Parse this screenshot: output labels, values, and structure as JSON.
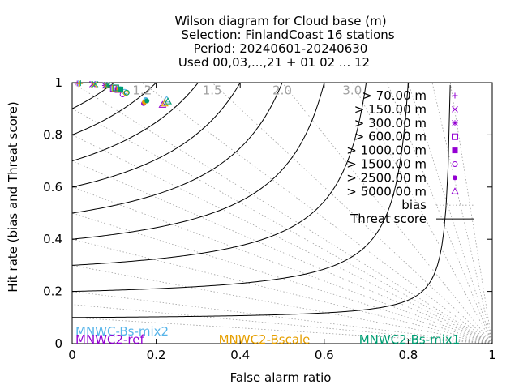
{
  "colors": {
    "threat_line": "#000000",
    "bias_line": "#a0a0a0",
    "mnwc_bs_mix2": "#56b4e9",
    "mnwc2_ref": "#9400d3",
    "mnwc2_bscale": "#e69f00",
    "mnwc2_bs_mix1": "#009e73",
    "legend_marker": "#9400d3"
  },
  "chart_data": {
    "type": "scatter",
    "title_lines": [
      "Wilson diagram  for Cloud base (m)",
      "Selection: FinlandCoast      16 stations",
      "Period: 20240601-20240630",
      "Used 00,03,...,21 + 01 02 ... 12"
    ],
    "xlabel": "False alarm ratio",
    "ylabel": "Hit rate (bias and Threat score)",
    "xlim": [
      0,
      1
    ],
    "ylim": [
      0,
      1
    ],
    "x_ticks": [
      "0",
      "0.2",
      "0.4",
      "0.6",
      "0.8",
      "1"
    ],
    "y_ticks": [
      "0",
      "0.2",
      "0.4",
      "0.6",
      "0.8",
      "1"
    ],
    "x_tick_values": [
      0,
      0.2,
      0.4,
      0.6,
      0.8,
      1
    ],
    "y_tick_values": [
      0,
      0.2,
      0.4,
      0.6,
      0.8,
      1
    ],
    "bias_labels": [
      "1.2",
      "1.5",
      "2.0",
      "3.0"
    ],
    "bias_values": [
      1.2,
      1.5,
      2.0,
      3.0
    ],
    "bias_lines": [
      0.1,
      0.15,
      0.2,
      0.3,
      0.4,
      0.5,
      0.6,
      0.7,
      0.8,
      0.9,
      1.0,
      1.2,
      1.5,
      2.0,
      3.0,
      4.0,
      5.0,
      7.0,
      10.0
    ],
    "threat_scores": [
      0.1,
      0.2,
      0.3,
      0.4,
      0.5,
      0.6,
      0.7,
      0.8,
      0.9
    ],
    "legend_position": "top-right",
    "legend": [
      {
        "label": "> 70.00 m",
        "marker": "plus"
      },
      {
        "label": "> 150.00 m",
        "marker": "cross"
      },
      {
        "label": "> 300.00 m",
        "marker": "star"
      },
      {
        "label": "> 600.00 m",
        "marker": "square"
      },
      {
        "label": "> 1000.00 m",
        "marker": "filled-square"
      },
      {
        "label": "> 1500.00 m",
        "marker": "circle"
      },
      {
        "label": "> 2500.00 m",
        "marker": "filled-circle"
      },
      {
        "label": "> 5000.00 m",
        "marker": "triangle"
      },
      {
        "label": "bias",
        "marker": "dotted-line"
      },
      {
        "label": "Threat score",
        "marker": "solid-line"
      }
    ],
    "series": [
      {
        "name": "MNWC-Bs-mix2",
        "color": "#56b4e9",
        "points": [
          {
            "x": 0.015,
            "y": 0.998,
            "marker": "plus"
          },
          {
            "x": 0.05,
            "y": 0.995,
            "marker": "cross"
          },
          {
            "x": 0.08,
            "y": 0.99,
            "marker": "star"
          },
          {
            "x": 0.1,
            "y": 0.98,
            "marker": "square"
          },
          {
            "x": 0.11,
            "y": 0.975,
            "marker": "filled-square"
          },
          {
            "x": 0.125,
            "y": 0.965,
            "marker": "circle"
          },
          {
            "x": 0.175,
            "y": 0.935,
            "marker": "filled-circle"
          },
          {
            "x": 0.225,
            "y": 0.935,
            "marker": "triangle"
          }
        ]
      },
      {
        "name": "MNWC2-ref",
        "color": "#9400d3",
        "points": [
          {
            "x": 0.012,
            "y": 0.997,
            "marker": "plus"
          },
          {
            "x": 0.048,
            "y": 0.994,
            "marker": "cross"
          },
          {
            "x": 0.078,
            "y": 0.989,
            "marker": "star"
          },
          {
            "x": 0.098,
            "y": 0.978,
            "marker": "square"
          },
          {
            "x": 0.108,
            "y": 0.972,
            "marker": "filled-square"
          },
          {
            "x": 0.12,
            "y": 0.955,
            "marker": "circle"
          },
          {
            "x": 0.17,
            "y": 0.92,
            "marker": "filled-circle"
          },
          {
            "x": 0.215,
            "y": 0.915,
            "marker": "triangle"
          }
        ]
      },
      {
        "name": "MNWC2-Bscale",
        "color": "#e69f00",
        "points": [
          {
            "x": 0.018,
            "y": 0.996,
            "marker": "plus"
          },
          {
            "x": 0.052,
            "y": 0.993,
            "marker": "cross"
          },
          {
            "x": 0.082,
            "y": 0.988,
            "marker": "star"
          },
          {
            "x": 0.102,
            "y": 0.979,
            "marker": "square"
          },
          {
            "x": 0.112,
            "y": 0.973,
            "marker": "filled-square"
          },
          {
            "x": 0.128,
            "y": 0.96,
            "marker": "circle"
          },
          {
            "x": 0.172,
            "y": 0.925,
            "marker": "filled-circle"
          },
          {
            "x": 0.22,
            "y": 0.92,
            "marker": "triangle"
          }
        ]
      },
      {
        "name": "MNWC2-Bs-mix1",
        "color": "#009e73",
        "points": [
          {
            "x": 0.02,
            "y": 0.998,
            "marker": "plus"
          },
          {
            "x": 0.055,
            "y": 0.994,
            "marker": "cross"
          },
          {
            "x": 0.085,
            "y": 0.99,
            "marker": "star"
          },
          {
            "x": 0.104,
            "y": 0.98,
            "marker": "square"
          },
          {
            "x": 0.115,
            "y": 0.974,
            "marker": "filled-square"
          },
          {
            "x": 0.13,
            "y": 0.962,
            "marker": "circle"
          },
          {
            "x": 0.178,
            "y": 0.93,
            "marker": "filled-circle"
          },
          {
            "x": 0.228,
            "y": 0.928,
            "marker": "triangle"
          }
        ]
      }
    ]
  }
}
